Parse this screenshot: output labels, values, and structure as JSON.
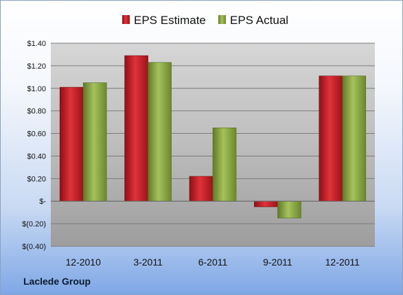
{
  "chart_data": {
    "type": "bar",
    "categories": [
      "12-2010",
      "3-2011",
      "6-2011",
      "9-2011",
      "12-2011"
    ],
    "series": [
      {
        "name": "EPS Estimate",
        "values": [
          1.01,
          1.29,
          0.22,
          -0.05,
          1.11
        ]
      },
      {
        "name": "EPS Actual",
        "values": [
          1.05,
          1.23,
          0.65,
          -0.15,
          1.11
        ]
      }
    ],
    "ylim": [
      -0.4,
      1.4
    ],
    "yticks": [
      1.4,
      1.2,
      1.0,
      0.8,
      0.6,
      0.4,
      0.2,
      0.0,
      -0.2,
      -0.4
    ],
    "ytick_labels": [
      "$1.40",
      "$1.20",
      "$1.00",
      "$0.80",
      "$0.60",
      "$0.40",
      "$0.20",
      "$-",
      "$(0.20)",
      "$(0.40)"
    ],
    "grid": true,
    "legend_position": "top-center",
    "colors": {
      "estimate": "#c8242b",
      "actual": "#8aa646"
    }
  },
  "footer": {
    "company": "Laclede Group"
  }
}
